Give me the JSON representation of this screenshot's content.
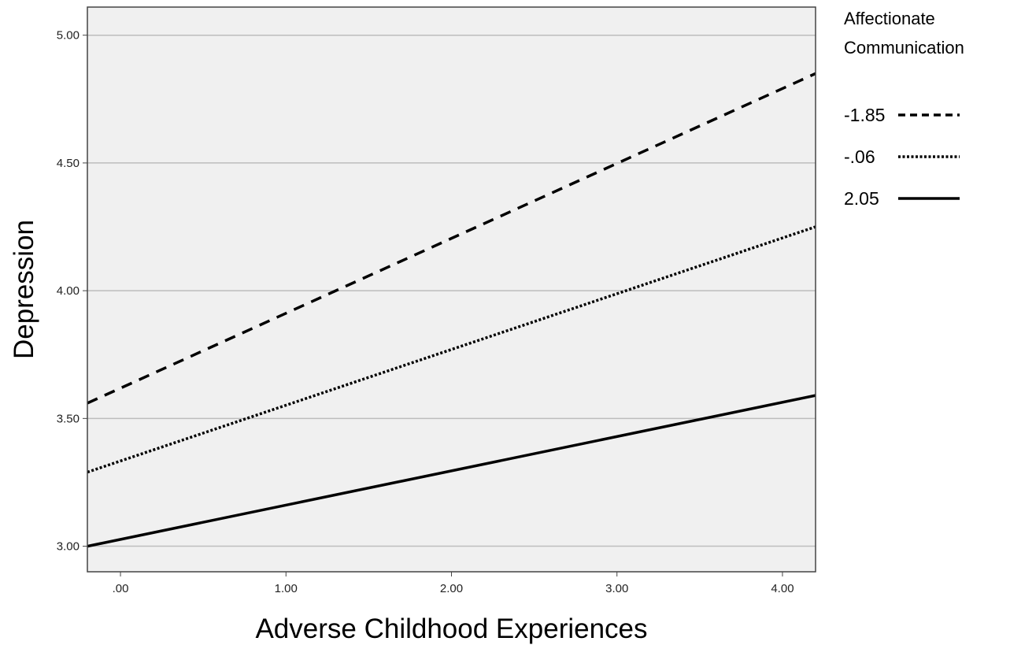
{
  "chart_data": {
    "type": "line",
    "title": "",
    "xlabel": "Adverse Childhood Experiences",
    "ylabel": "Depression",
    "xlim": [
      -0.2,
      4.2
    ],
    "ylim": [
      2.9,
      5.11
    ],
    "x_ticks": [
      0,
      1,
      2,
      3,
      4
    ],
    "x_tick_labels": [
      ".00",
      "1.00",
      "2.00",
      "3.00",
      "4.00"
    ],
    "y_ticks": [
      3.0,
      3.5,
      4.0,
      4.5,
      5.0
    ],
    "y_tick_labels": [
      "3.00",
      "3.50",
      "4.00",
      "4.50",
      "5.00"
    ],
    "grid": "horizontal",
    "plot_background": "#f0f0f0",
    "legend": {
      "title": [
        "Affectionate",
        "Communication"
      ],
      "placement": "right"
    },
    "series": [
      {
        "name": "-1.85",
        "style": "dashed",
        "color": "#000000",
        "x": [
          -0.2,
          4.2
        ],
        "y": [
          3.56,
          4.85
        ]
      },
      {
        "name": "-.06",
        "style": "dotted",
        "color": "#000000",
        "x": [
          -0.2,
          4.2
        ],
        "y": [
          3.29,
          4.25
        ]
      },
      {
        "name": "2.05",
        "style": "solid",
        "color": "#000000",
        "x": [
          -0.2,
          4.2
        ],
        "y": [
          3.0,
          3.59
        ]
      }
    ]
  }
}
